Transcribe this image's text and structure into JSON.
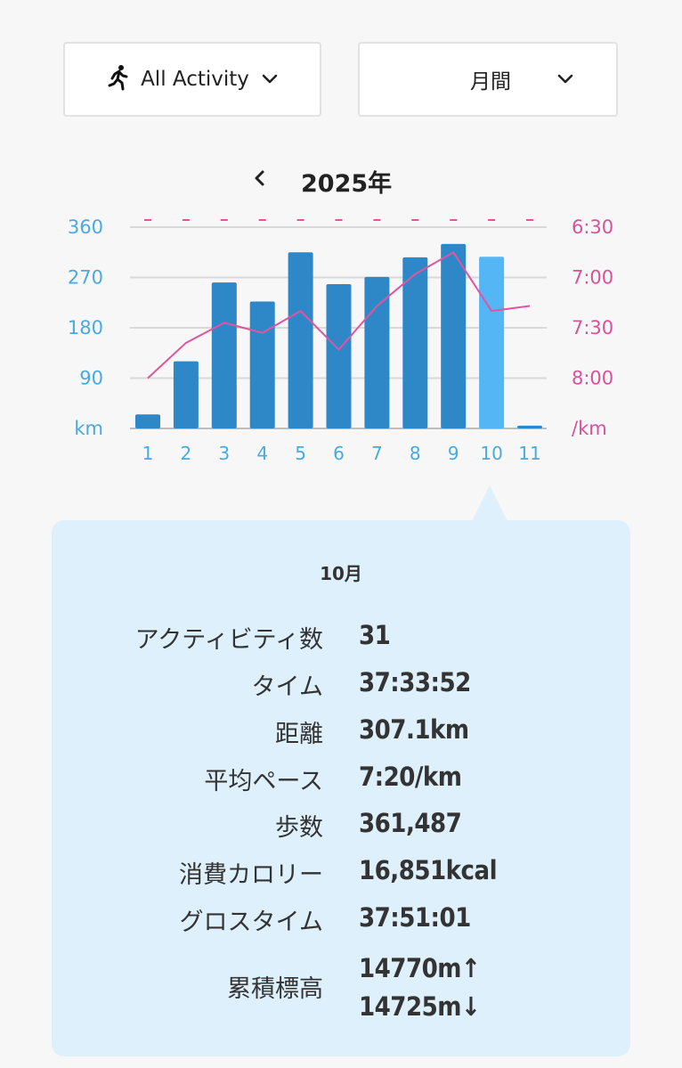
{
  "filters": {
    "activity": {
      "label": "All Activity",
      "icon": "runner-icon"
    },
    "period": {
      "label": "月間"
    }
  },
  "year_nav": {
    "title": "2025年"
  },
  "chart_data": {
    "type": "bar",
    "categories": [
      "1",
      "2",
      "3",
      "4",
      "5",
      "6",
      "7",
      "8",
      "9",
      "10",
      "11"
    ],
    "series": [
      {
        "values": [
          25,
          120,
          261,
          227,
          315,
          258,
          271,
          306,
          330,
          307.1,
          5
        ],
        "axis": "left"
      },
      {
        "type": "line",
        "values": [
          "8:00",
          "7:39",
          "7:27",
          "7:33",
          "7:20",
          "7:43",
          "7:17",
          "6:58",
          "6:45",
          "7:20",
          "7:17"
        ],
        "axis": "right"
      }
    ],
    "left_axis": {
      "ticks": [
        "360",
        "270",
        "180",
        "90",
        "km"
      ],
      "ylim": [
        0,
        360
      ]
    },
    "right_axis": {
      "ticks": [
        "6:30",
        "7:00",
        "7:30",
        "8:00",
        "/km"
      ],
      "range": [
        "8:30",
        "6:30"
      ]
    },
    "highlight_index": 9,
    "colors": {
      "bar": "#2e88c8",
      "bar_selected": "#55b6f5",
      "line": "#e0559f",
      "left_axis": "#49a9e2",
      "right_axis": "#d9519a",
      "grid": "#d8d8d8"
    }
  },
  "details": {
    "title": "10月",
    "stats": [
      {
        "label": "アクティビティ数",
        "value": "31"
      },
      {
        "label": "タイム",
        "value": "37:33:52"
      },
      {
        "label": "距離",
        "value": "307.1km"
      },
      {
        "label": "平均ペース",
        "value": "7:20/km"
      },
      {
        "label": "歩数",
        "value": "361,487"
      },
      {
        "label": "消費カロリー",
        "value": "16,851kcal"
      },
      {
        "label": "グロスタイム",
        "value": "37:51:01"
      }
    ],
    "elevation": {
      "label": "累積標高",
      "up": "14770m↑",
      "down": "14725m↓"
    }
  }
}
